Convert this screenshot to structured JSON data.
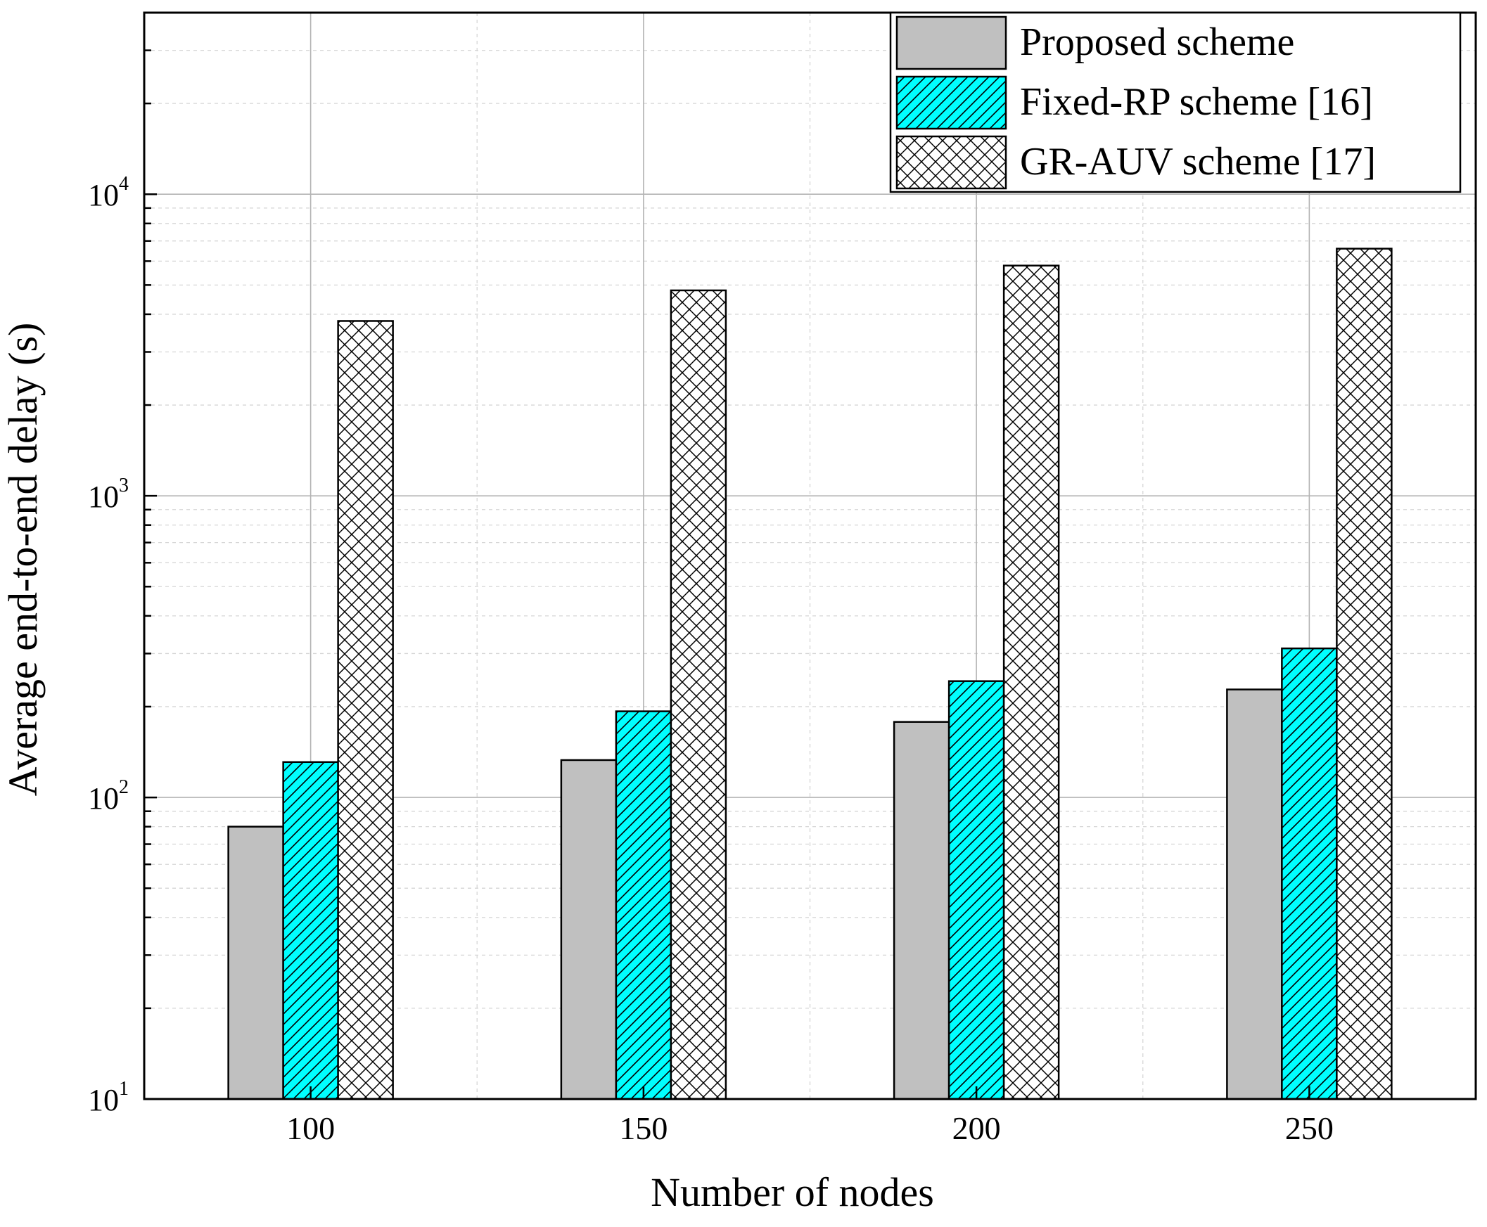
{
  "chart_data": {
    "type": "bar",
    "title": "",
    "xlabel": "Number of nodes",
    "ylabel": "Average end-to-end delay (s)",
    "yscale": "log",
    "ylim": [
      10,
      40000
    ],
    "yticks": [
      {
        "value": 10,
        "base": "10",
        "exp": "1"
      },
      {
        "value": 100,
        "base": "10",
        "exp": "2"
      },
      {
        "value": 1000,
        "base": "10",
        "exp": "3"
      },
      {
        "value": 10000,
        "base": "10",
        "exp": "4"
      }
    ],
    "categories": [
      "100",
      "150",
      "200",
      "250"
    ],
    "series": [
      {
        "name": "Proposed scheme",
        "values": [
          80,
          133,
          178,
          228
        ],
        "fill": "#c0c0c0",
        "pattern": "solid"
      },
      {
        "name": "Fixed-RP scheme [16]",
        "values": [
          131,
          193,
          243,
          312
        ],
        "fill": "#00ffff",
        "pattern": "diagonal"
      },
      {
        "name": "GR-AUV scheme [17]",
        "values": [
          3800,
          4800,
          5800,
          6600
        ],
        "fill": "#ffffff",
        "pattern": "crosshatch"
      }
    ],
    "grid": true,
    "legend_position": "top-right"
  }
}
